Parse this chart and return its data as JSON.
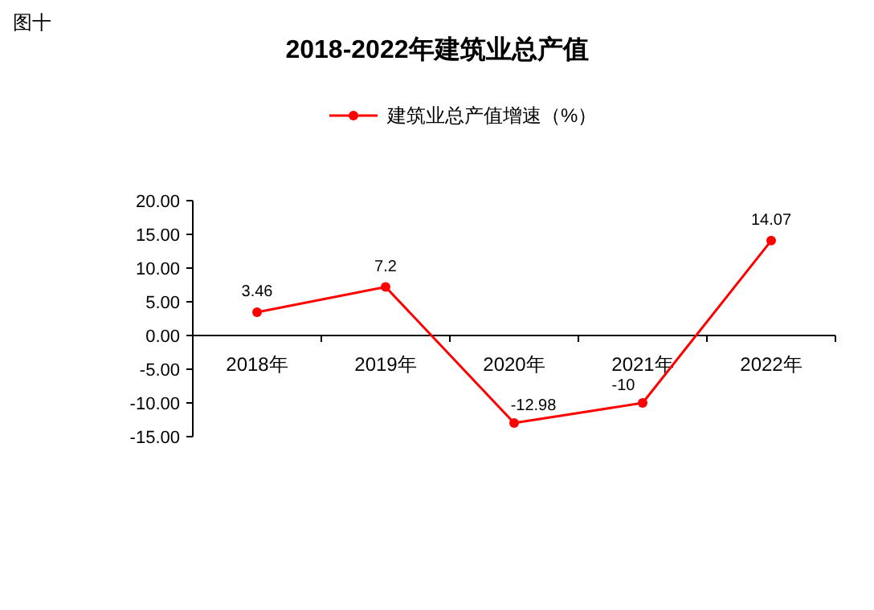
{
  "chart_data": {
    "type": "line",
    "title": "2018-2022年建筑业总产值",
    "annotations": [
      "图十"
    ],
    "categories": [
      "2018年",
      "2019年",
      "2020年",
      "2021年",
      "2022年"
    ],
    "series": [
      {
        "name": "建筑业总产值增速（%）",
        "color": "#ff0000",
        "values": [
          3.46,
          7.2,
          -12.98,
          -10,
          14.07
        ]
      }
    ],
    "ylim": [
      -15,
      20
    ],
    "yticks": [
      {
        "value": -15,
        "label": "-15.00"
      },
      {
        "value": -10,
        "label": "-10.00"
      },
      {
        "value": -5,
        "label": "-5.00"
      },
      {
        "value": 0,
        "label": "0.00"
      },
      {
        "value": 5,
        "label": "5.00"
      },
      {
        "value": 10,
        "label": "10.00"
      },
      {
        "value": 15,
        "label": "15.00"
      },
      {
        "value": 20,
        "label": "20.00"
      }
    ],
    "data_labels": true,
    "legend": "top",
    "marker": "circle"
  }
}
